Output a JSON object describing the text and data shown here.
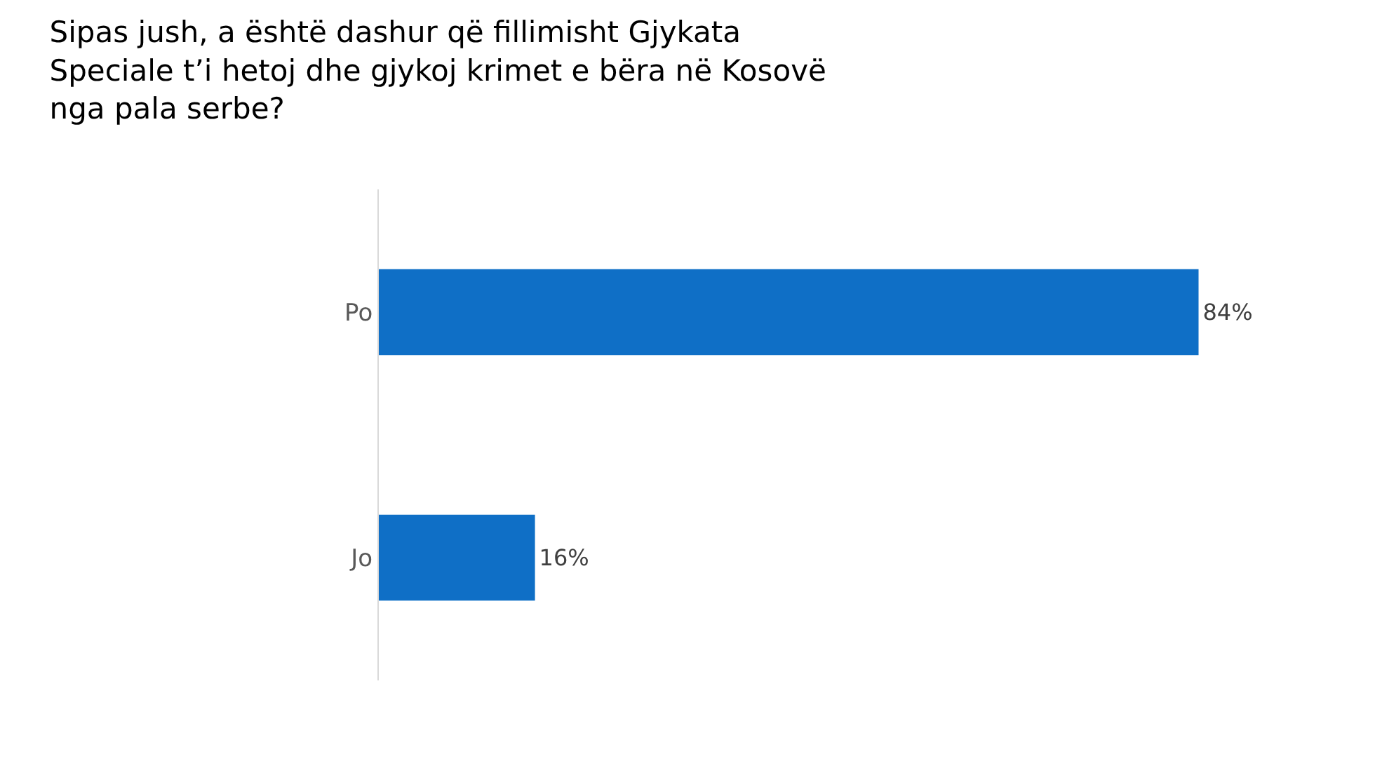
{
  "chart_data": {
    "type": "bar",
    "orientation": "horizontal",
    "title": "Sipas jush, a është dashur që fillimisht Gjykata\nSpeciale t’i hetoj dhe gjykoj krimet e bëra në Kosovë\nnga pala serbe?",
    "categories": [
      "Po",
      "Jo"
    ],
    "values": [
      84,
      16
    ],
    "value_labels": [
      "84%",
      "16%"
    ],
    "color": "#0f6fc6",
    "tick_labels": "y",
    "grid": false,
    "legend": false
  }
}
